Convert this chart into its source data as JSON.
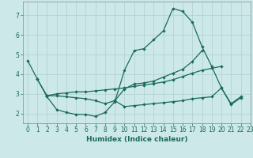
{
  "title": "",
  "xlabel": "Humidex (Indice chaleur)",
  "bg_color": "#cce8e8",
  "line_color": "#1a6b5a",
  "grid_color": "#b0d0cc",
  "xlim": [
    -0.5,
    23
  ],
  "ylim": [
    1.5,
    7.7
  ],
  "yticks": [
    2,
    3,
    4,
    5,
    6,
    7
  ],
  "xticks": [
    0,
    1,
    2,
    3,
    4,
    5,
    6,
    7,
    8,
    9,
    10,
    11,
    12,
    13,
    14,
    15,
    16,
    17,
    18,
    19,
    20,
    21,
    22,
    23
  ],
  "line1_x": [
    0,
    1,
    2,
    3,
    4,
    5,
    6,
    7,
    8,
    9,
    10,
    11,
    12,
    13,
    14,
    15,
    16,
    17,
    18,
    19,
    20,
    21,
    22
  ],
  "line1_y": [
    4.7,
    3.75,
    2.85,
    2.2,
    2.05,
    1.95,
    1.95,
    1.85,
    2.05,
    2.6,
    4.2,
    5.2,
    5.3,
    5.75,
    6.2,
    7.35,
    7.2,
    6.65,
    5.4,
    4.4,
    3.3,
    2.45,
    2.8
  ],
  "line2_x": [
    1,
    2,
    3,
    4,
    5,
    6,
    7,
    8,
    9,
    10,
    11,
    12,
    13,
    14,
    15,
    16,
    17,
    18
  ],
  "line2_y": [
    3.75,
    2.9,
    2.9,
    2.85,
    2.8,
    2.75,
    2.65,
    2.5,
    2.65,
    3.25,
    3.5,
    3.55,
    3.65,
    3.85,
    4.05,
    4.25,
    4.65,
    5.2
  ],
  "line3_x": [
    2,
    3,
    4,
    5,
    6,
    7,
    8,
    9,
    10,
    11,
    12,
    13,
    14,
    15,
    16,
    17,
    18,
    19,
    20
  ],
  "line3_y": [
    2.9,
    3.0,
    3.05,
    3.1,
    3.1,
    3.15,
    3.2,
    3.25,
    3.3,
    3.38,
    3.45,
    3.52,
    3.6,
    3.72,
    3.88,
    4.05,
    4.2,
    4.3,
    4.4
  ],
  "line4_x": [
    9,
    10,
    11,
    12,
    13,
    14,
    15,
    16,
    17,
    18,
    19,
    20,
    21,
    22
  ],
  "line4_y": [
    2.65,
    2.35,
    2.4,
    2.45,
    2.5,
    2.55,
    2.6,
    2.65,
    2.75,
    2.8,
    2.85,
    3.3,
    2.5,
    2.85
  ]
}
